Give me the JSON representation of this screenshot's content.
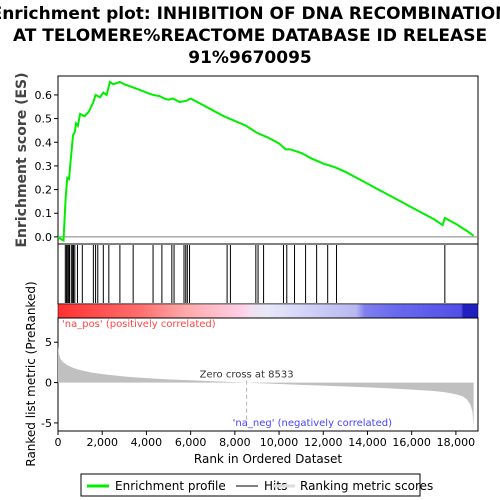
{
  "chart_data": {
    "type": "line",
    "title_lines": [
      "Enrichment plot: INHIBITION OF DNA RECOMBINATION",
      "AT TELOMERE%REACTOME DATABASE ID RELEASE",
      "91%9670095"
    ],
    "es_ylabel": "Enrichment score (ES)",
    "metric_ylabel": "Ranked list metric (PreRanked)",
    "xlabel": "Rank in Ordered Dataset",
    "xlim": [
      0,
      19000
    ],
    "es_ylim": [
      -0.03,
      0.68
    ],
    "es_yticks": [
      "0.0",
      "0.1",
      "0.2",
      "0.3",
      "0.4",
      "0.5",
      "0.6"
    ],
    "es_ytick_values": [
      0.0,
      0.1,
      0.2,
      0.3,
      0.4,
      0.5,
      0.6
    ],
    "metric_ylim": [
      -6,
      8
    ],
    "metric_yticks": [
      "-5",
      "0",
      "5"
    ],
    "metric_ytick_values": [
      -5,
      0,
      5
    ],
    "xticks": [
      "0",
      "2,000",
      "4,000",
      "6,000",
      "8,000",
      "10,000",
      "12,000",
      "14,000",
      "16,000",
      "18,000"
    ],
    "xtick_values": [
      0,
      2000,
      4000,
      6000,
      8000,
      10000,
      12000,
      14000,
      16000,
      18000
    ],
    "enrichment_profile": {
      "x": [
        0,
        150,
        250,
        300,
        350,
        420,
        500,
        560,
        620,
        680,
        750,
        820,
        900,
        1000,
        1200,
        1400,
        1600,
        1700,
        1900,
        2050,
        2200,
        2350,
        2500,
        2800,
        3000,
        3300,
        3600,
        4000,
        4300,
        4600,
        4800,
        5000,
        5200,
        5500,
        5800,
        6000,
        6500,
        7000,
        7500,
        8000,
        8500,
        9000,
        9500,
        10000,
        10300,
        10500,
        11000,
        11500,
        12000,
        12500,
        13000,
        13500,
        14000,
        14500,
        15000,
        15500,
        16000,
        16500,
        17000,
        17400,
        17500,
        18000,
        18500,
        18800
      ],
      "y": [
        0.0,
        -0.01,
        -0.015,
        0.08,
        0.17,
        0.25,
        0.245,
        0.31,
        0.37,
        0.43,
        0.44,
        0.48,
        0.47,
        0.52,
        0.51,
        0.53,
        0.57,
        0.6,
        0.59,
        0.61,
        0.6,
        0.655,
        0.645,
        0.655,
        0.645,
        0.635,
        0.625,
        0.61,
        0.6,
        0.595,
        0.585,
        0.58,
        0.585,
        0.57,
        0.575,
        0.585,
        0.56,
        0.535,
        0.51,
        0.49,
        0.47,
        0.44,
        0.42,
        0.395,
        0.37,
        0.37,
        0.355,
        0.33,
        0.31,
        0.295,
        0.275,
        0.25,
        0.225,
        0.2,
        0.175,
        0.15,
        0.125,
        0.1,
        0.075,
        0.05,
        0.08,
        0.055,
        0.025,
        0.005
      ]
    },
    "hits": [
      330,
      380,
      420,
      470,
      520,
      600,
      650,
      700,
      760,
      880,
      1100,
      1600,
      1700,
      1800,
      2050,
      2300,
      2800,
      3400,
      4300,
      4700,
      5150,
      5250,
      5700,
      5780,
      5850,
      5950,
      7650,
      7800,
      8950,
      9050,
      9300,
      10200,
      10350,
      10700,
      11200,
      11700,
      12200,
      12600,
      17500
    ],
    "zero_cross_rank": 8533,
    "zero_cross_label": "Zero cross at 8533",
    "pos_label": "'na_pos' (positively correlated)",
    "neg_label": "'na_neg' (negatively correlated)",
    "metric_profile": {
      "x": [
        0,
        40,
        100,
        200,
        400,
        700,
        1000,
        1500,
        2000,
        3000,
        4000,
        5000,
        6000,
        7000,
        8000,
        8533,
        9000,
        10000,
        11000,
        12000,
        13000,
        14000,
        15000,
        16000,
        17000,
        17500,
        18000,
        18300,
        18500,
        18650,
        18750,
        18800
      ],
      "y": [
        4.5,
        3.6,
        3.0,
        2.6,
        2.2,
        1.8,
        1.55,
        1.25,
        1.05,
        0.75,
        0.55,
        0.4,
        0.28,
        0.17,
        0.06,
        0.0,
        -0.07,
        -0.18,
        -0.28,
        -0.38,
        -0.48,
        -0.6,
        -0.72,
        -0.88,
        -1.05,
        -1.2,
        -1.45,
        -1.7,
        -2.1,
        -2.7,
        -3.6,
        -5.5
      ]
    },
    "colors": {
      "enrichment_line": "#00ee00",
      "hits": "#000000",
      "metric_fill": "#c0c0c0",
      "pos_text": "#ff4444",
      "neg_text": "#4444ff"
    },
    "legend_placement": "bottom",
    "legend": [
      {
        "label": "Enrichment profile",
        "color": "#00ee00"
      },
      {
        "label": "Hits",
        "color": "#808080"
      },
      {
        "label": "Ranking metric scores",
        "color": "#dddddd"
      }
    ]
  }
}
